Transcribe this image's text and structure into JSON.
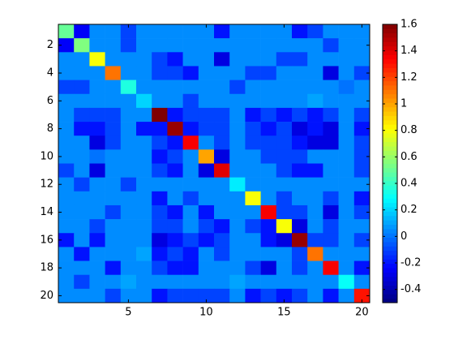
{
  "chart_data": {
    "type": "heatmap",
    "colormap": "jet",
    "xlim": [
      0.5,
      20.5
    ],
    "ylim": [
      0.5,
      20.5
    ],
    "xticks": [
      5,
      10,
      15,
      20
    ],
    "yticks": [
      2,
      4,
      6,
      8,
      10,
      12,
      14,
      16,
      18,
      20
    ],
    "clim": [
      -0.5,
      1.6
    ],
    "cticks": [
      -0.4,
      -0.2,
      0,
      0.2,
      0.4,
      0.6,
      0.8,
      1,
      1.2,
      1.4,
      1.6
    ],
    "z": [
      [
        0.5,
        -0.25,
        0.05,
        0.05,
        -0.1,
        0.05,
        0.05,
        0.05,
        0.05,
        0.05,
        -0.2,
        0.05,
        0.05,
        0.05,
        0.05,
        -0.2,
        -0.1,
        0.05,
        0.05,
        0.05
      ],
      [
        -0.25,
        0.55,
        0.05,
        0.05,
        -0.1,
        0.05,
        0.05,
        0.05,
        0.05,
        0.05,
        0.05,
        0.05,
        0.05,
        0.05,
        0.05,
        0.05,
        0.05,
        -0.1,
        0.05,
        0.05
      ],
      [
        0.05,
        0.05,
        0.8,
        0.05,
        0.05,
        0.05,
        -0.1,
        -0.2,
        0.05,
        0.05,
        -0.3,
        0.05,
        0.05,
        0.05,
        -0.1,
        -0.1,
        0.05,
        0.05,
        0.05,
        0.05
      ],
      [
        0.05,
        0.05,
        0.05,
        1.1,
        0.05,
        0.05,
        -0.1,
        -0.1,
        -0.2,
        0.05,
        0.05,
        0.05,
        -0.1,
        -0.1,
        0.05,
        0.05,
        0.05,
        -0.3,
        0.05,
        -0.1
      ],
      [
        -0.1,
        -0.1,
        0.05,
        0.05,
        0.35,
        0.05,
        0.05,
        0.05,
        0.05,
        0.05,
        0.05,
        -0.1,
        0.05,
        0.05,
        0.05,
        0.05,
        0.05,
        0.05,
        0,
        0.05
      ],
      [
        0.05,
        0.05,
        0.05,
        0.05,
        0.05,
        0.2,
        0.05,
        0.05,
        -0.1,
        0.05,
        0.05,
        0.05,
        0.05,
        0.05,
        0.05,
        0.05,
        0.1,
        0.05,
        0.05,
        0.05
      ],
      [
        0.05,
        -0.1,
        -0.1,
        -0.1,
        0.05,
        0.05,
        1.6,
        -0.2,
        -0.1,
        -0.1,
        -0.1,
        0.05,
        -0.2,
        -0.1,
        -0.2,
        -0.1,
        -0.2,
        -0.1,
        0.05,
        -0.1
      ],
      [
        0.05,
        -0.2,
        -0.2,
        -0.1,
        0.05,
        -0.2,
        -0.2,
        1.55,
        -0.2,
        -0.1,
        -0.1,
        0.05,
        -0.1,
        -0.2,
        -0.1,
        -0.3,
        -0.2,
        -0.3,
        0.05,
        -0.2
      ],
      [
        0.05,
        0.05,
        -0.3,
        -0.1,
        0.05,
        0.05,
        -0.1,
        -0.2,
        1.35,
        0.05,
        -0.1,
        0.05,
        -0.1,
        -0.1,
        -0.1,
        -0.2,
        -0.3,
        -0.3,
        0.05,
        -0.1
      ],
      [
        0.05,
        0.05,
        0,
        0.05,
        0.05,
        0.05,
        -0.2,
        -0.1,
        0.05,
        1,
        -0.3,
        0.05,
        0.05,
        -0.1,
        -0.1,
        -0.1,
        0.05,
        0.05,
        0.05,
        -0.1
      ],
      [
        -0.1,
        0.05,
        -0.3,
        0.05,
        0.05,
        0.05,
        -0.1,
        -0.2,
        0.05,
        -0.3,
        1.4,
        0.05,
        0.05,
        0.05,
        -0.1,
        -0.2,
        -0.2,
        0.05,
        0.05,
        -0.1
      ],
      [
        0.05,
        -0.1,
        0.05,
        0.05,
        -0.1,
        0.05,
        0.05,
        0.05,
        0.05,
        0.05,
        0.05,
        0.25,
        0.05,
        0.05,
        0.05,
        0.05,
        0.05,
        0.05,
        0.05,
        0.05
      ],
      [
        0.05,
        0.05,
        0.05,
        0.05,
        0.05,
        0.05,
        -0.2,
        0.05,
        -0.1,
        0.05,
        0.05,
        0.05,
        0.8,
        0.05,
        -0.1,
        0.05,
        0.05,
        -0.1,
        0.05,
        -0.2
      ],
      [
        0.05,
        0.05,
        0.05,
        -0.1,
        0.05,
        0.05,
        -0.1,
        -0.2,
        0.05,
        -0.2,
        0.05,
        0.05,
        0.05,
        1.35,
        -0.1,
        -0.1,
        0.05,
        -0.3,
        0.05,
        -0.1
      ],
      [
        0.05,
        0.05,
        -0.1,
        0.05,
        0.05,
        0.05,
        -0.1,
        -0.1,
        0.05,
        -0.1,
        -0.2,
        0.05,
        -0.1,
        -0.2,
        0.8,
        -0.3,
        0.05,
        -0.1,
        0.05,
        0.05
      ],
      [
        -0.2,
        0.05,
        -0.2,
        0.05,
        0.05,
        0.05,
        -0.3,
        -0.2,
        -0.1,
        -0.2,
        -0.1,
        0.05,
        0.05,
        -0.2,
        -0.3,
        1.55,
        -0.1,
        -0.1,
        0.05,
        -0.1
      ],
      [
        0.05,
        -0.2,
        0.05,
        0.05,
        0.05,
        0.1,
        -0.2,
        -0.1,
        -0.2,
        0.05,
        -0.1,
        0.05,
        0.05,
        0.05,
        0.05,
        -0.1,
        1.1,
        0.05,
        0.05,
        0.05
      ],
      [
        0.05,
        0.05,
        0.05,
        -0.2,
        0.05,
        0.05,
        -0.1,
        -0.2,
        -0.2,
        0.05,
        0.05,
        0.05,
        -0.1,
        -0.3,
        0.05,
        -0.1,
        0.05,
        1.35,
        0.05,
        -0.2
      ],
      [
        0.05,
        -0.1,
        0.05,
        0.05,
        0.1,
        0.05,
        0.05,
        0.05,
        0.05,
        0.05,
        0.05,
        0.1,
        0.05,
        0.05,
        0.05,
        0.05,
        0.05,
        0.05,
        0.3,
        0.05
      ],
      [
        0.05,
        0.05,
        0.05,
        -0.1,
        0.05,
        0.05,
        -0.2,
        -0.1,
        -0.1,
        -0.1,
        -0.1,
        0.05,
        -0.2,
        -0.1,
        -0.2,
        -0.1,
        0.05,
        -0.2,
        0.05,
        1.3
      ]
    ]
  }
}
